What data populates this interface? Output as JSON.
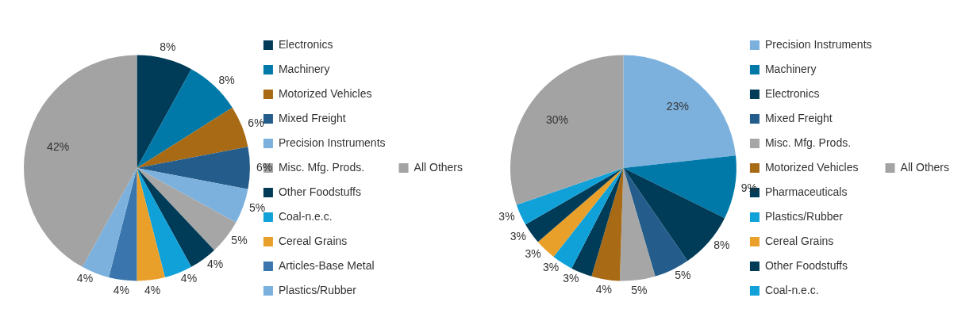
{
  "chart_data": [
    {
      "type": "pie",
      "categories": [
        "Electronics",
        "Machinery",
        "Motorized Vehicles",
        "Mixed Freight",
        "Precision Instruments",
        "Misc. Mfg. Prods.",
        "Other Foodstuffs",
        "Coal-n.e.c.",
        "Cereal Grains",
        "Articles-Base Metal",
        "Plastics/Rubber",
        "All Others"
      ],
      "values": [
        8,
        8,
        6,
        6,
        5,
        5,
        4,
        4,
        4,
        4,
        4,
        42
      ],
      "value_labels": [
        "8%",
        "8%",
        "6%",
        "6%",
        "5%",
        "5%",
        "4%",
        "4%",
        "4%",
        "4%",
        "4%",
        "42%"
      ],
      "colors": [
        "#003b57",
        "#0079a9",
        "#a86a14",
        "#245d8b",
        "#7cb1de",
        "#a6a6a6",
        "#003b57",
        "#10a1d9",
        "#e9a02b",
        "#3a76ad",
        "#7cb1de",
        "#a3a3a3"
      ],
      "legend": "right",
      "data_labels": true
    },
    {
      "type": "pie",
      "categories": [
        "Precision Instruments",
        "Machinery",
        "Electronics",
        "Mixed Freight",
        "Misc. Mfg. Prods.",
        "Motorized Vehicles",
        "Pharmaceuticals",
        "Plastics/Rubber",
        "Cereal Grains",
        "Other Foodstuffs",
        "Coal-n.e.c.",
        "All Others"
      ],
      "values": [
        23,
        9,
        8,
        5,
        5,
        4,
        3,
        3,
        3,
        3,
        3,
        30
      ],
      "value_labels": [
        "23%",
        "9%",
        "8%",
        "5%",
        "5%",
        "4%",
        "3%",
        "3%",
        "3%",
        "3%",
        "3%",
        "30%"
      ],
      "colors": [
        "#7cb1de",
        "#0079a9",
        "#003b57",
        "#245d8b",
        "#a6a6a6",
        "#a86a14",
        "#003b57",
        "#10a1d9",
        "#e9a02b",
        "#003b57",
        "#10a1d9",
        "#a3a3a3"
      ],
      "legend": "right",
      "data_labels": true
    }
  ]
}
